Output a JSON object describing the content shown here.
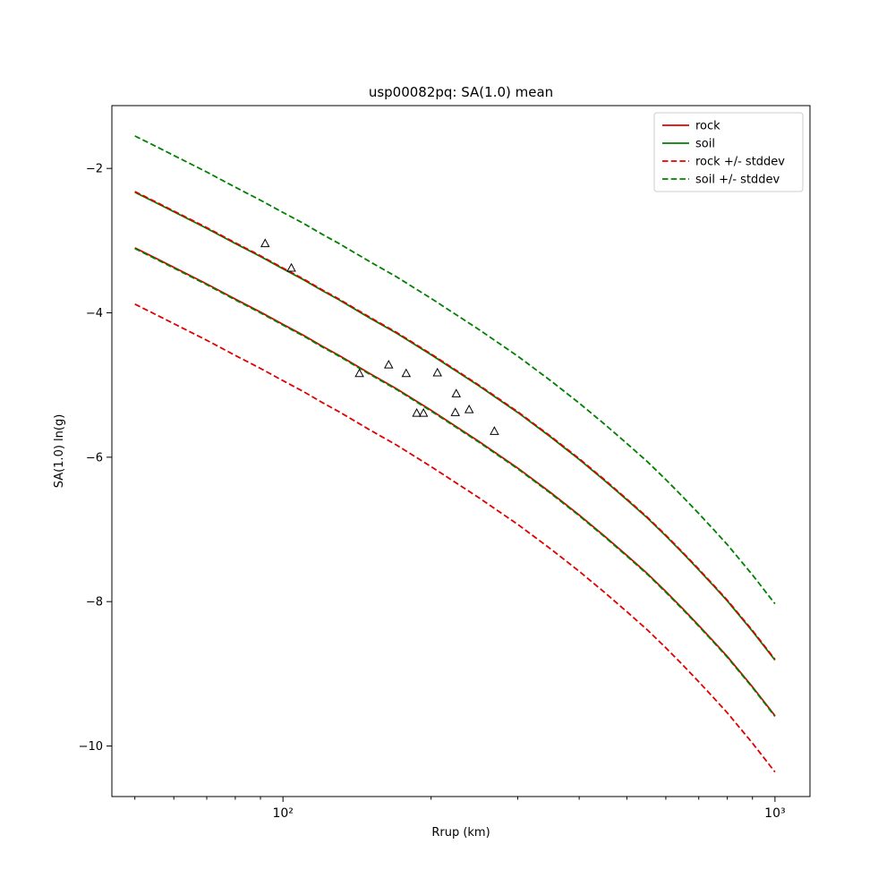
{
  "window": {
    "background": "#ffffff"
  },
  "chart_data": {
    "type": "line",
    "title": "usp00082pq: SA(1.0) mean",
    "xlabel": "Rrup (km)",
    "ylabel": "SA(1.0) ln(g)",
    "x_scale": "log",
    "y_scale": "linear",
    "xlim": [
      44.9,
      1178
    ],
    "ylim": [
      -10.7,
      -1.13
    ],
    "x_ticks": [
      100,
      1000
    ],
    "x_tick_labels": [
      "10²",
      "10³"
    ],
    "x_minor_ticks": [
      50,
      60,
      70,
      80,
      90,
      200,
      300,
      400,
      500,
      600,
      700,
      800,
      900
    ],
    "y_ticks": [
      -2,
      -4,
      -6,
      -8,
      -10
    ],
    "y_tick_labels": [
      "−2",
      "−4",
      "−6",
      "−8",
      "−10"
    ],
    "grid": false,
    "legend_position": "upper right",
    "x": [
      50,
      55,
      60,
      70,
      80,
      90,
      100,
      110,
      120,
      130,
      150,
      170,
      200,
      250,
      300,
      350,
      400,
      450,
      500,
      550,
      600,
      650,
      700,
      750,
      800,
      900,
      1000
    ],
    "series": [
      {
        "name": "rock",
        "label": "rock",
        "color": "#e00000",
        "linestyle": "solid",
        "in_legend": true,
        "values": [
          -3.1,
          -3.24,
          -3.37,
          -3.6,
          -3.81,
          -3.99,
          -4.16,
          -4.31,
          -4.46,
          -4.59,
          -4.84,
          -5.05,
          -5.35,
          -5.78,
          -6.15,
          -6.49,
          -6.8,
          -7.09,
          -7.36,
          -7.61,
          -7.86,
          -8.1,
          -8.33,
          -8.55,
          -8.76,
          -9.18,
          -9.58
        ]
      },
      {
        "name": "soil",
        "label": "soil",
        "color": "#008000",
        "linestyle": "solid",
        "in_legend": true,
        "values": [
          -2.33,
          -2.47,
          -2.6,
          -2.83,
          -3.04,
          -3.22,
          -3.39,
          -3.54,
          -3.69,
          -3.82,
          -4.07,
          -4.28,
          -4.58,
          -5.01,
          -5.38,
          -5.72,
          -6.03,
          -6.32,
          -6.59,
          -6.84,
          -7.09,
          -7.33,
          -7.56,
          -7.78,
          -7.99,
          -8.41,
          -8.81
        ]
      },
      {
        "name": "rock_plus_stddev",
        "label": "rock +/- stddev",
        "color": "#e00000",
        "linestyle": "dashed",
        "in_legend": true,
        "values": [
          -2.32,
          -2.46,
          -2.59,
          -2.82,
          -3.03,
          -3.21,
          -3.38,
          -3.53,
          -3.68,
          -3.81,
          -4.06,
          -4.27,
          -4.57,
          -5.0,
          -5.37,
          -5.71,
          -6.02,
          -6.31,
          -6.58,
          -6.83,
          -7.08,
          -7.32,
          -7.55,
          -7.77,
          -7.98,
          -8.4,
          -8.8
        ]
      },
      {
        "name": "rock_minus_stddev",
        "label": "",
        "color": "#e00000",
        "linestyle": "dashed",
        "in_legend": false,
        "values": [
          -3.88,
          -4.02,
          -4.15,
          -4.38,
          -4.59,
          -4.77,
          -4.94,
          -5.09,
          -5.24,
          -5.37,
          -5.62,
          -5.83,
          -6.13,
          -6.56,
          -6.93,
          -7.27,
          -7.58,
          -7.87,
          -8.14,
          -8.39,
          -8.64,
          -8.88,
          -9.11,
          -9.33,
          -9.54,
          -9.96,
          -10.36
        ]
      },
      {
        "name": "soil_plus_stddev",
        "label": "soil +/- stddev",
        "color": "#008000",
        "linestyle": "dashed",
        "in_legend": true,
        "values": [
          -1.55,
          -1.69,
          -1.82,
          -2.05,
          -2.26,
          -2.44,
          -2.61,
          -2.76,
          -2.91,
          -3.04,
          -3.29,
          -3.5,
          -3.8,
          -4.23,
          -4.6,
          -4.94,
          -5.25,
          -5.54,
          -5.81,
          -6.06,
          -6.31,
          -6.55,
          -6.78,
          -7.0,
          -7.21,
          -7.63,
          -8.03
        ]
      },
      {
        "name": "soil_minus_stddev",
        "label": "",
        "color": "#008000",
        "linestyle": "dashed",
        "in_legend": false,
        "values": [
          -3.11,
          -3.25,
          -3.38,
          -3.61,
          -3.82,
          -4.0,
          -4.17,
          -4.32,
          -4.47,
          -4.6,
          -4.85,
          -5.06,
          -5.36,
          -5.79,
          -6.16,
          -6.5,
          -6.81,
          -7.1,
          -7.37,
          -7.62,
          -7.87,
          -8.11,
          -8.34,
          -8.56,
          -8.77,
          -9.19,
          -9.59
        ]
      }
    ],
    "scatter": {
      "name": "observations",
      "marker": "open-triangle",
      "edge_color": "#000000",
      "points": [
        [
          92,
          -3.04
        ],
        [
          104,
          -3.38
        ],
        [
          143,
          -4.84
        ],
        [
          164,
          -4.72
        ],
        [
          178,
          -4.84
        ],
        [
          206,
          -4.83
        ],
        [
          225,
          -5.12
        ],
        [
          187,
          -5.39
        ],
        [
          193,
          -5.39
        ],
        [
          224,
          -5.38
        ],
        [
          239,
          -5.34
        ],
        [
          269,
          -5.64
        ]
      ]
    }
  }
}
